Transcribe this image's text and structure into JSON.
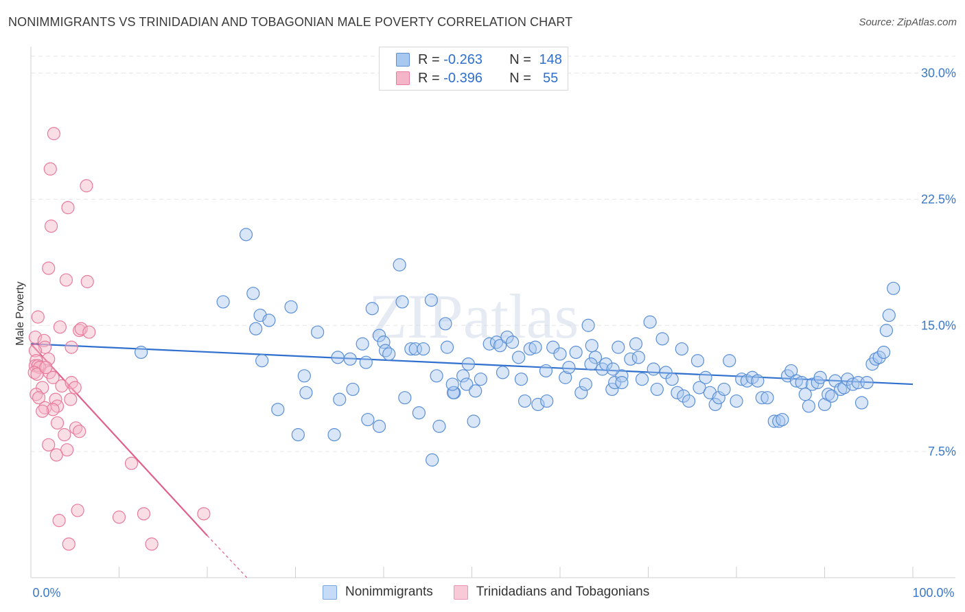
{
  "title": "NONIMMIGRANTS VS TRINIDADIAN AND TOBAGONIAN MALE POVERTY CORRELATION CHART",
  "source": "Source: ZipAtlas.com",
  "watermark": "ZIPatlas",
  "colors": {
    "blue_fill": "#a8c8f0",
    "blue_stroke": "#5a8fd6",
    "blue_line": "#2f6fce",
    "pink_fill": "#f5b5c8",
    "pink_stroke": "#e87a9c",
    "pink_line": "#e0608a",
    "tick_text": "#3a78c8",
    "grid": "#e6e6e6"
  },
  "legend": {
    "rows": [
      {
        "r_label": "R =",
        "r_value": "-0.263",
        "n_label": "N =",
        "n_value": "148"
      },
      {
        "r_label": "R =",
        "r_value": "-0.396",
        "n_label": "N =",
        "n_value": " 55"
      }
    ]
  },
  "bottom_legend": {
    "series1": "Nonimmigrants",
    "series2": "Trinidadians and Tobagonians"
  },
  "chart_data": {
    "type": "scatter",
    "title": "NONIMMIGRANTS VS TRINIDADIAN AND TOBAGONIAN MALE POVERTY CORRELATION CHART",
    "xlabel": "",
    "ylabel": "Male Poverty",
    "xlim": [
      0,
      100
    ],
    "ylim": [
      0,
      31
    ],
    "x_tick_labels": [
      "0.0%",
      "100.0%"
    ],
    "y_ticks": [
      7.5,
      15.0,
      22.5,
      30.0
    ],
    "y_tick_labels": [
      "7.5%",
      "15.0%",
      "22.5%",
      "30.0%"
    ],
    "grid": true,
    "legend_position": "top-center",
    "series": [
      {
        "name": "Nonimmigrants",
        "R": -0.263,
        "N": 148,
        "trend": {
          "x": [
            0,
            100
          ],
          "y": [
            13.9,
            11.5
          ]
        },
        "points": [
          [
            12.5,
            13.4
          ],
          [
            24.4,
            20.4
          ],
          [
            21.8,
            16.4
          ],
          [
            25.2,
            16.9
          ],
          [
            26.0,
            15.6
          ],
          [
            25.5,
            14.8
          ],
          [
            27.0,
            15.3
          ],
          [
            26.2,
            12.9
          ],
          [
            29.5,
            16.1
          ],
          [
            30.3,
            8.5
          ],
          [
            28.0,
            10.0
          ],
          [
            31.2,
            11.0
          ],
          [
            31.0,
            12.0
          ],
          [
            34.8,
            13.1
          ],
          [
            32.5,
            14.6
          ],
          [
            35.0,
            10.6
          ],
          [
            34.4,
            8.5
          ],
          [
            36.5,
            11.2
          ],
          [
            36.2,
            13.0
          ],
          [
            37.6,
            13.9
          ],
          [
            38.0,
            12.8
          ],
          [
            38.7,
            16.0
          ],
          [
            39.5,
            14.4
          ],
          [
            40.0,
            14.0
          ],
          [
            40.2,
            13.5
          ],
          [
            38.2,
            9.4
          ],
          [
            39.5,
            9.0
          ],
          [
            40.6,
            13.3
          ],
          [
            41.8,
            18.6
          ],
          [
            42.1,
            16.4
          ],
          [
            43.1,
            13.6
          ],
          [
            43.6,
            13.6
          ],
          [
            42.4,
            10.7
          ],
          [
            44.0,
            9.8
          ],
          [
            44.5,
            13.6
          ],
          [
            45.4,
            16.5
          ],
          [
            46.0,
            12.0
          ],
          [
            47.0,
            15.1
          ],
          [
            47.2,
            13.7
          ],
          [
            46.3,
            9.0
          ],
          [
            48.0,
            11.0
          ],
          [
            49.0,
            12.0
          ],
          [
            49.4,
            11.5
          ],
          [
            49.6,
            12.7
          ],
          [
            47.9,
            11.0
          ],
          [
            50.4,
            11.1
          ],
          [
            50.2,
            9.3
          ],
          [
            51.0,
            11.8
          ],
          [
            52.0,
            13.9
          ],
          [
            52.8,
            14.0
          ],
          [
            53.5,
            12.2
          ],
          [
            53.2,
            13.8
          ],
          [
            54.0,
            14.3
          ],
          [
            54.6,
            14.0
          ],
          [
            55.3,
            13.1
          ],
          [
            55.6,
            11.8
          ],
          [
            56.0,
            10.5
          ],
          [
            56.6,
            13.6
          ],
          [
            57.2,
            13.7
          ],
          [
            57.5,
            10.3
          ],
          [
            58.4,
            12.3
          ],
          [
            58.5,
            10.5
          ],
          [
            59.2,
            13.7
          ],
          [
            60.0,
            13.3
          ],
          [
            60.6,
            11.9
          ],
          [
            61.0,
            12.5
          ],
          [
            61.8,
            13.4
          ],
          [
            62.4,
            11.0
          ],
          [
            62.9,
            11.5
          ],
          [
            63.2,
            15.0
          ],
          [
            63.6,
            13.8
          ],
          [
            64.0,
            13.1
          ],
          [
            64.8,
            12.4
          ],
          [
            65.2,
            12.7
          ],
          [
            65.9,
            11.2
          ],
          [
            66.2,
            11.6
          ],
          [
            67.0,
            12.0
          ],
          [
            67.0,
            11.6
          ],
          [
            66.6,
            13.7
          ],
          [
            68.0,
            13.0
          ],
          [
            68.6,
            13.9
          ],
          [
            68.9,
            13.1
          ],
          [
            69.3,
            11.8
          ],
          [
            70.2,
            15.2
          ],
          [
            70.6,
            12.4
          ],
          [
            71.0,
            11.2
          ],
          [
            72.0,
            12.2
          ],
          [
            71.6,
            14.2
          ],
          [
            72.7,
            11.8
          ],
          [
            73.3,
            11.0
          ],
          [
            73.8,
            13.6
          ],
          [
            74.0,
            10.8
          ],
          [
            74.6,
            10.5
          ],
          [
            75.6,
            12.9
          ],
          [
            75.8,
            11.3
          ],
          [
            76.5,
            11.9
          ],
          [
            77.0,
            11.0
          ],
          [
            77.6,
            10.3
          ],
          [
            78.0,
            10.7
          ],
          [
            78.6,
            11.2
          ],
          [
            79.2,
            12.9
          ],
          [
            80.0,
            10.5
          ],
          [
            80.6,
            11.8
          ],
          [
            81.2,
            11.7
          ],
          [
            81.8,
            11.9
          ],
          [
            82.4,
            11.7
          ],
          [
            82.9,
            10.7
          ],
          [
            83.5,
            10.7
          ],
          [
            84.3,
            9.3
          ],
          [
            84.8,
            9.3
          ],
          [
            85.2,
            9.4
          ],
          [
            85.8,
            12.0
          ],
          [
            86.2,
            12.3
          ],
          [
            86.8,
            11.7
          ],
          [
            87.4,
            11.6
          ],
          [
            87.8,
            10.9
          ],
          [
            88.2,
            10.2
          ],
          [
            88.6,
            11.5
          ],
          [
            89.2,
            11.6
          ],
          [
            89.5,
            11.9
          ],
          [
            90.0,
            10.3
          ],
          [
            90.4,
            10.9
          ],
          [
            90.8,
            10.8
          ],
          [
            91.2,
            11.7
          ],
          [
            91.8,
            11.2
          ],
          [
            92.2,
            11.3
          ],
          [
            92.6,
            11.8
          ],
          [
            93.2,
            11.5
          ],
          [
            93.8,
            11.6
          ],
          [
            94.2,
            10.4
          ],
          [
            94.8,
            11.6
          ],
          [
            95.4,
            12.7
          ],
          [
            95.8,
            13.0
          ],
          [
            96.2,
            13.1
          ],
          [
            96.7,
            13.4
          ],
          [
            97.0,
            14.7
          ],
          [
            97.3,
            15.6
          ],
          [
            97.8,
            17.2
          ],
          [
            63.5,
            12.7
          ],
          [
            45.5,
            7.0
          ],
          [
            66.0,
            12.4
          ],
          [
            47.8,
            11.5
          ]
        ]
      },
      {
        "name": "Trinidadians and Tobagonians",
        "R": -0.396,
        "N": 55,
        "trend": {
          "x": [
            0,
            20
          ],
          "y": [
            13.9,
            2.5
          ],
          "dashed_to": {
            "x": 24.5,
            "y": 0.0
          }
        },
        "points": [
          [
            2.6,
            26.4
          ],
          [
            2.2,
            24.3
          ],
          [
            6.3,
            23.3
          ],
          [
            4.2,
            22.0
          ],
          [
            2.3,
            20.9
          ],
          [
            2.0,
            18.4
          ],
          [
            4.0,
            17.7
          ],
          [
            6.4,
            17.6
          ],
          [
            0.8,
            15.5
          ],
          [
            3.3,
            14.9
          ],
          [
            5.5,
            14.7
          ],
          [
            5.7,
            14.8
          ],
          [
            6.6,
            14.6
          ],
          [
            0.5,
            14.3
          ],
          [
            1.5,
            14.1
          ],
          [
            1.6,
            13.7
          ],
          [
            4.6,
            13.7
          ],
          [
            0.5,
            13.5
          ],
          [
            0.6,
            12.9
          ],
          [
            2.0,
            13.0
          ],
          [
            0.5,
            12.6
          ],
          [
            0.8,
            12.6
          ],
          [
            1.0,
            12.5
          ],
          [
            0.4,
            12.2
          ],
          [
            2.1,
            12.2
          ],
          [
            0.7,
            12.1
          ],
          [
            2.5,
            11.9
          ],
          [
            3.5,
            11.4
          ],
          [
            4.6,
            11.6
          ],
          [
            5.0,
            11.3
          ],
          [
            1.3,
            11.3
          ],
          [
            0.6,
            10.9
          ],
          [
            0.9,
            10.7
          ],
          [
            2.8,
            10.6
          ],
          [
            4.5,
            10.6
          ],
          [
            3.0,
            10.2
          ],
          [
            1.6,
            10.1
          ],
          [
            2.5,
            10.0
          ],
          [
            1.3,
            9.9
          ],
          [
            3.0,
            9.2
          ],
          [
            5.1,
            8.9
          ],
          [
            5.5,
            8.7
          ],
          [
            3.8,
            8.5
          ],
          [
            2.0,
            7.9
          ],
          [
            4.1,
            7.6
          ],
          [
            2.9,
            7.3
          ],
          [
            11.4,
            6.8
          ],
          [
            5.3,
            4.0
          ],
          [
            3.2,
            3.4
          ],
          [
            10.0,
            3.6
          ],
          [
            12.8,
            3.8
          ],
          [
            19.6,
            3.8
          ],
          [
            4.3,
            2.0
          ],
          [
            13.7,
            2.0
          ],
          [
            1.7,
            12.5
          ]
        ]
      }
    ]
  }
}
